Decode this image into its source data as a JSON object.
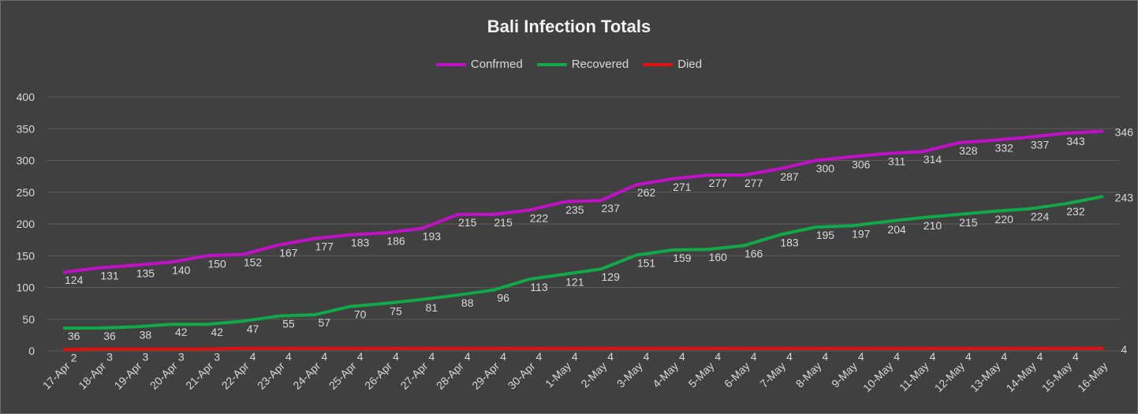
{
  "chart_data": {
    "type": "line",
    "title": "Bali Infection Totals",
    "legend_position": "top",
    "grid": true,
    "ylim": [
      0,
      400
    ],
    "yticks": [
      0,
      50,
      100,
      150,
      200,
      250,
      300,
      350,
      400
    ],
    "categories": [
      "17-Apr",
      "18-Apr",
      "19-Apr",
      "20-Apr",
      "21-Apr",
      "22-Apr",
      "23-Apr",
      "24-Apr",
      "25-Apr",
      "26-Apr",
      "27-Apr",
      "28-Apr",
      "29-Apr",
      "30-Apr",
      "1-May",
      "2-May",
      "3-May",
      "4-May",
      "5-May",
      "6-May",
      "7-May",
      "8-May",
      "9-May",
      "10-May",
      "11-May",
      "12-May",
      "13-May",
      "14-May",
      "15-May",
      "16-May"
    ],
    "series": [
      {
        "name": "Confrmed",
        "color": "#c010c8",
        "values": [
          124,
          131,
          135,
          140,
          150,
          152,
          167,
          177,
          183,
          186,
          193,
          215,
          215,
          222,
          235,
          237,
          262,
          271,
          277,
          277,
          287,
          300,
          306,
          311,
          314,
          328,
          332,
          337,
          343,
          346
        ]
      },
      {
        "name": "Recovered",
        "color": "#10a848",
        "values": [
          36,
          36,
          38,
          42,
          42,
          47,
          55,
          57,
          70,
          75,
          81,
          88,
          96,
          113,
          121,
          129,
          151,
          159,
          160,
          166,
          183,
          195,
          197,
          204,
          210,
          215,
          220,
          224,
          232,
          243
        ]
      },
      {
        "name": "Died",
        "color": "#e01010",
        "values": [
          2,
          3,
          3,
          3,
          3,
          4,
          4,
          4,
          4,
          4,
          4,
          4,
          4,
          4,
          4,
          4,
          4,
          4,
          4,
          4,
          4,
          4,
          4,
          4,
          4,
          4,
          4,
          4,
          4,
          4
        ]
      }
    ]
  }
}
